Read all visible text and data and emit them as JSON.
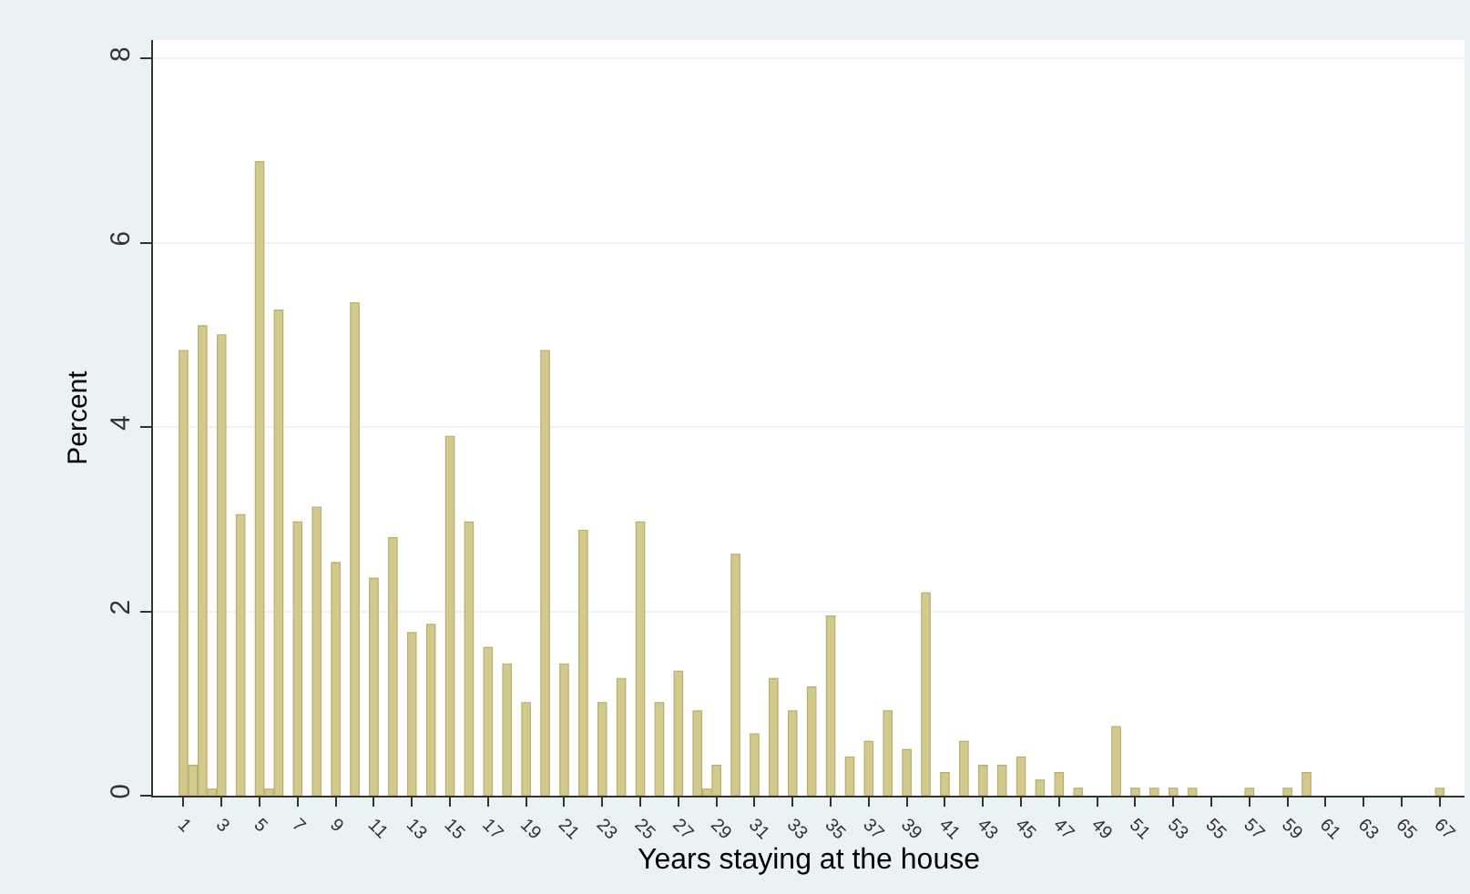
{
  "chart_data": {
    "type": "bar",
    "xlabel": "Years staying at the house",
    "ylabel": "Percent",
    "color": "#d2c98c",
    "x": [
      1,
      1.5,
      2,
      2.5,
      3,
      4,
      5,
      5.5,
      6,
      7,
      8,
      9,
      10,
      11,
      12,
      13,
      14,
      15,
      16,
      17,
      18,
      19,
      20,
      21,
      22,
      23,
      24,
      25,
      26,
      27,
      28,
      28.5,
      29,
      30,
      31,
      32,
      33,
      34,
      35,
      36,
      37,
      38,
      39,
      40,
      41,
      42,
      43,
      44,
      45,
      46,
      47,
      48,
      50,
      51,
      52,
      53,
      54,
      57,
      59,
      60,
      67
    ],
    "values": [
      4.83,
      0.33,
      5.1,
      0.07,
      5.0,
      3.05,
      6.88,
      0.07,
      5.27,
      2.97,
      3.13,
      2.53,
      5.35,
      2.36,
      2.8,
      1.77,
      1.86,
      3.9,
      2.97,
      1.61,
      1.43,
      1.01,
      4.83,
      1.43,
      2.88,
      1.01,
      1.27,
      2.97,
      1.01,
      1.35,
      0.92,
      0.07,
      0.33,
      2.62,
      0.67,
      1.27,
      0.92,
      1.18,
      1.95,
      0.42,
      0.59,
      0.92,
      0.5,
      2.2,
      0.25,
      0.59,
      0.33,
      0.33,
      0.42,
      0.17,
      0.25,
      0.08,
      0.75,
      0.08,
      0.08,
      0.08,
      0.08,
      0.08,
      0.08,
      0.25,
      0.08
    ],
    "xlim": [
      -0.6,
      68.3
    ],
    "xticks": [
      1,
      3,
      5,
      7,
      9,
      11,
      13,
      15,
      17,
      19,
      21,
      23,
      25,
      27,
      29,
      31,
      33,
      35,
      37,
      39,
      41,
      43,
      45,
      47,
      49,
      51,
      53,
      55,
      57,
      59,
      61,
      63,
      65,
      67
    ],
    "ylim": [
      0,
      8.2
    ],
    "yticks": [
      0,
      2,
      4,
      6,
      8
    ],
    "grid": "y"
  }
}
